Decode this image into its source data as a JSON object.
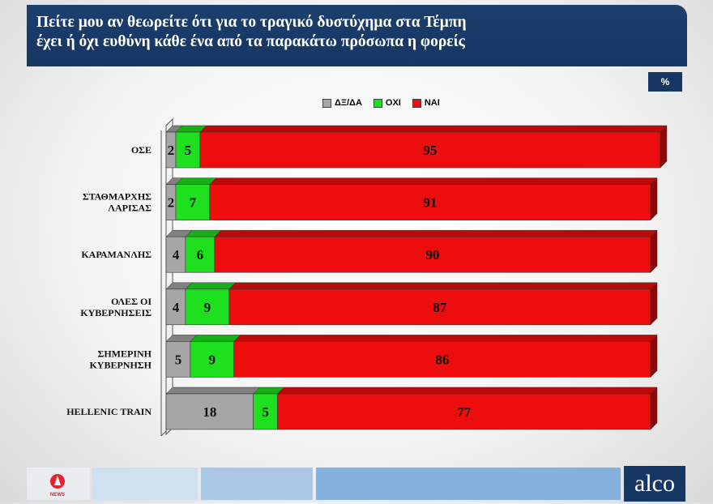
{
  "header": {
    "title_line1": "Πείτε μου αν θεωρείτε ότι για το τραγικό δυστύχημα στα Τέμπη",
    "title_line2": "έχει ή όχι ευθύνη κάθε ένα από τα παρακάτω πρόσωπα η φορείς"
  },
  "unit_badge": "%",
  "footer": {
    "left_logo_text": "NEWS",
    "right_logo_text": "alco"
  },
  "colors": {
    "header_bg": "#163663",
    "dk": "#a6a6a6",
    "no": "#1ee01e",
    "yes": "#ee0d0d"
  },
  "chart_data": {
    "type": "bar",
    "orientation": "horizontal",
    "stacked": true,
    "three_d": true,
    "legend_position": "top-right",
    "xlim": [
      0,
      100
    ],
    "categories": [
      [
        "ΟΣΕ"
      ],
      [
        "ΣΤΑΘΜΑΡΧΗΣ",
        "ΛΑΡΙΣΑΣ"
      ],
      [
        "ΚΑΡΑΜΑΝΛΗΣ"
      ],
      [
        "ΟΛΕΣ ΟΙ",
        "ΚΥΒΕΡΝΗΣΕΙΣ"
      ],
      [
        "ΣΗΜΕΡΙΝΗ",
        "ΚΥΒΕΡΝΗΣΗ"
      ],
      [
        "HELLENIC TRAIN"
      ]
    ],
    "series": [
      {
        "name": "ΔΞ/ΔΑ",
        "color": "#a6a6a6",
        "values": [
          2,
          2,
          4,
          4,
          5,
          18
        ]
      },
      {
        "name": "ΟΧΙ",
        "color": "#1ee01e",
        "values": [
          5,
          7,
          6,
          9,
          9,
          5
        ]
      },
      {
        "name": "ΝΑΙ",
        "color": "#ee0d0d",
        "values": [
          95,
          91,
          90,
          87,
          86,
          77
        ]
      }
    ]
  }
}
